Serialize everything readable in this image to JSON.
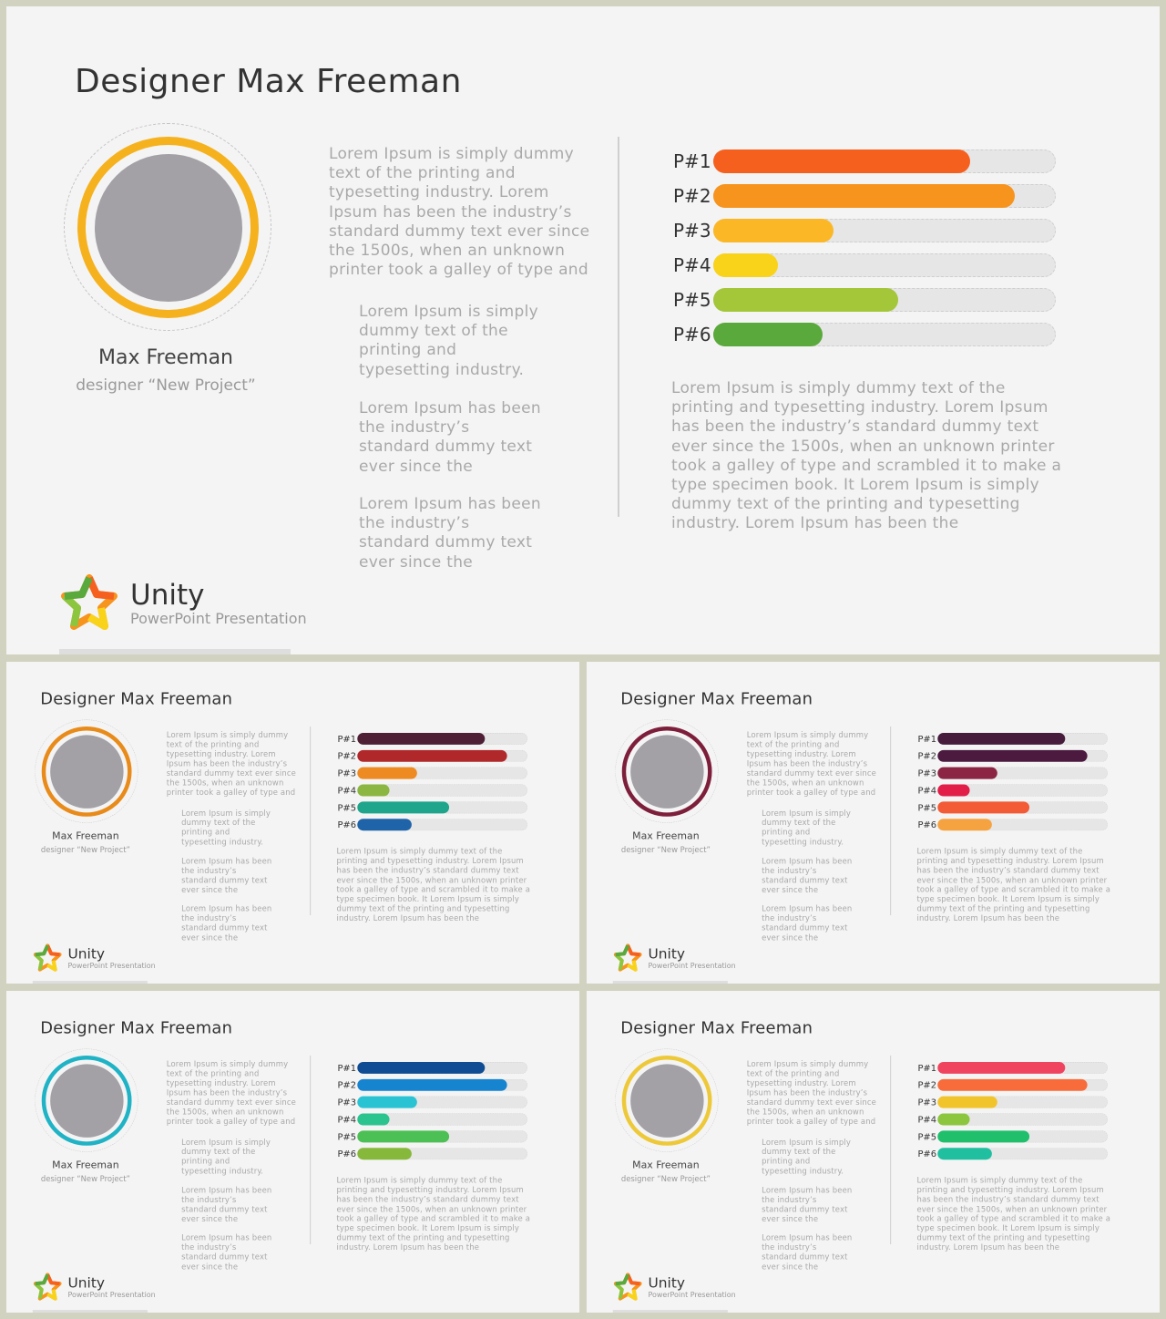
{
  "common": {
    "title": "Designer Max Freeman",
    "name": "Max Freeman",
    "role": "designer “New Project”",
    "para_main": "Lorem Ipsum is simply dummy text of the printing and typesetting industry. Lorem Ipsum has been the industry’s standard dummy text ever since the 1500s, when an unknown printer took a galley of type and",
    "para_s1": "Lorem Ipsum is simply dummy text of the printing and typesetting industry.",
    "para_s2": "Lorem Ipsum has been the industry’s standard dummy text ever since the",
    "para_s3": "Lorem Ipsum has been the industry’s standard dummy text ever since the",
    "para_right": "Lorem Ipsum is simply dummy text of the printing and typesetting industry. Lorem Ipsum has been the industry’s standard dummy text ever since the 1500s, when an unknown printer took a galley of type and scrambled it to make a type specimen book. It Lorem Ipsum is simply dummy text of the printing and typesetting industry. Lorem Ipsum has been the",
    "logo_name": "Unity",
    "logo_sub": "PowerPoint Presentation",
    "bar_labels": [
      "P#1",
      "P#2",
      "P#3",
      "P#4",
      "P#5",
      "P#6"
    ],
    "bar_values": [
      0.75,
      0.88,
      0.35,
      0.19,
      0.54,
      0.32
    ]
  },
  "slides": [
    {
      "ring_color": "#f5b21e",
      "bar_colors": [
        "#f6601f",
        "#f7941d",
        "#fbb726",
        "#f9d31a",
        "#a4c639",
        "#5aa93c"
      ]
    },
    {
      "ring_color": "#e88b1a",
      "bar_colors": [
        "#4e1f35",
        "#b1282b",
        "#ee8a22",
        "#8ab641",
        "#1ea58c",
        "#1f63a8"
      ]
    },
    {
      "ring_color": "#7d1f3b",
      "bar_colors": [
        "#461b3b",
        "#4c1a3f",
        "#8b2543",
        "#e11d48",
        "#f35a36",
        "#f5a341"
      ]
    },
    {
      "ring_color": "#1fb3c5",
      "bar_colors": [
        "#0f4c94",
        "#1784d0",
        "#29c3d4",
        "#2bc48f",
        "#4cc054",
        "#86b83b"
      ]
    },
    {
      "ring_color": "#edc93a",
      "bar_colors": [
        "#f0435f",
        "#f86c3b",
        "#f2c42c",
        "#8cc63f",
        "#1fbf6c",
        "#1fbfa0"
      ]
    }
  ]
}
